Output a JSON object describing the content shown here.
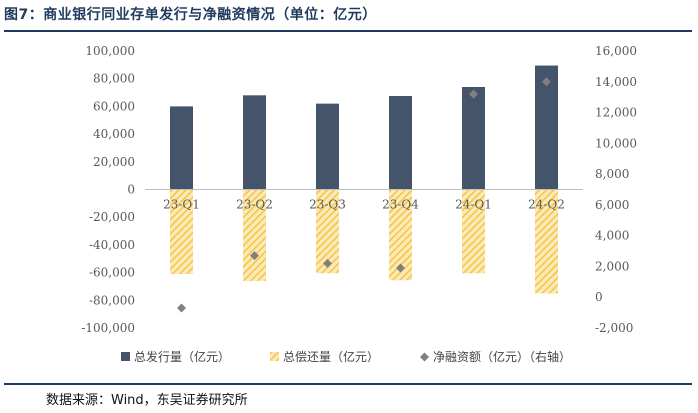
{
  "title": "图7：商业银行同业存单发行与净融资情况（单位：亿元）",
  "source": "数据来源：Wind，东吴证券研究所",
  "chart_data": {
    "type": "bar",
    "categories": [
      "23-Q1",
      "23-Q2",
      "23-Q3",
      "23-Q4",
      "24-Q1",
      "24-Q2"
    ],
    "series": [
      {
        "name": "总发行量（亿元）",
        "axis": "left",
        "values": [
          60000,
          68000,
          62000,
          67500,
          74000,
          89500
        ],
        "color": "#44546a"
      },
      {
        "name": "总偿还量（亿元）",
        "axis": "left",
        "values": [
          -61000,
          -66000,
          -60500,
          -65500,
          -60500,
          -75000
        ],
        "color": "#f5c542",
        "pattern": "diagonal-hatch"
      },
      {
        "name": "净融资额（亿元）（右轴）",
        "axis": "right",
        "type": "scatter",
        "marker": "diamond",
        "values": [
          -700,
          2700,
          2200,
          1900,
          13200,
          14000
        ],
        "color": "#808080"
      }
    ],
    "y_left": {
      "ylim": [
        -100000,
        100000
      ],
      "ticks": [
        100000,
        80000,
        60000,
        40000,
        20000,
        0,
        -20000,
        -40000,
        -60000,
        -80000,
        -100000
      ],
      "tick_labels": [
        "100,000",
        "80,000",
        "60,000",
        "40,000",
        "20,000",
        "0",
        "-20,000",
        "-40,000",
        "-60,000",
        "-80,000",
        "-100,000"
      ]
    },
    "y_right": {
      "ylim": [
        -2000,
        16000
      ],
      "ticks": [
        16000,
        14000,
        12000,
        10000,
        8000,
        6000,
        4000,
        2000,
        0,
        -2000
      ],
      "tick_labels": [
        "16,000",
        "14,000",
        "12,000",
        "10,000",
        "8,000",
        "6,000",
        "4,000",
        "2,000",
        "0",
        "-2,000"
      ]
    },
    "grid": false,
    "legend": "bottom"
  }
}
